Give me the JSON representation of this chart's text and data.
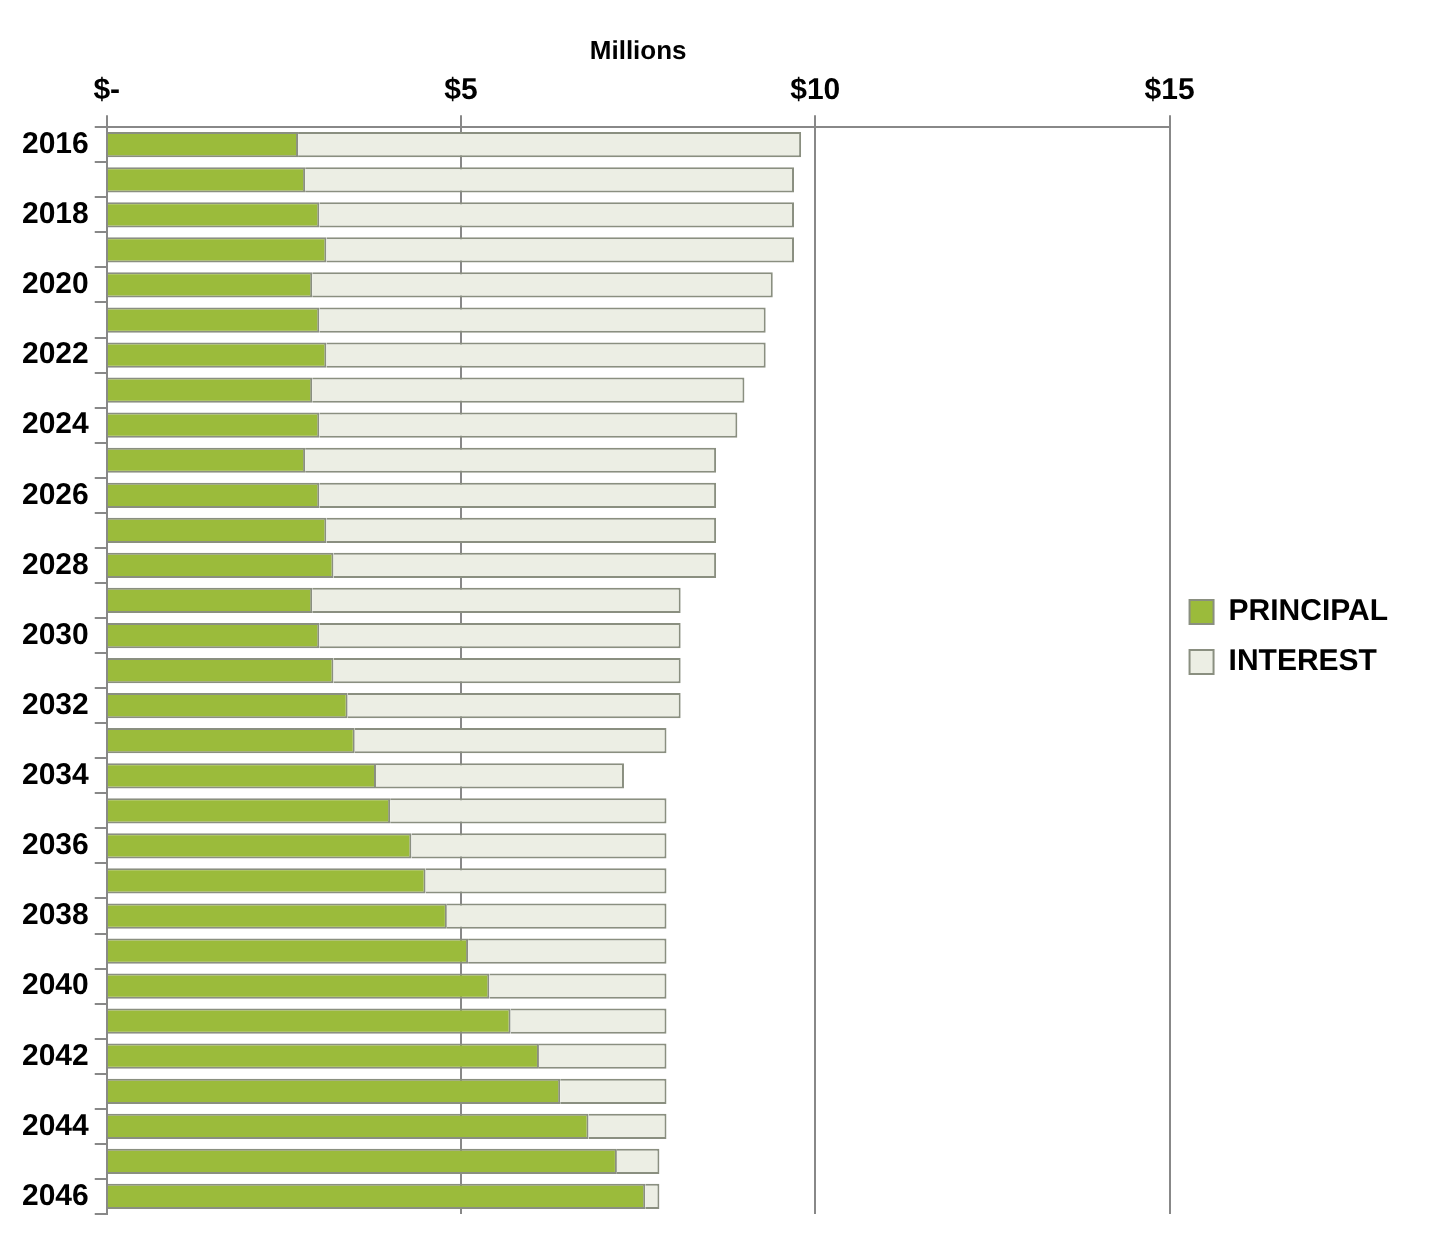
{
  "chart_data": {
    "type": "bar",
    "orientation": "horizontal",
    "stacked": true,
    "xlabel": "Millions",
    "categories": [
      "2016",
      null,
      "2018",
      null,
      "2020",
      null,
      "2022",
      null,
      "2024",
      null,
      "2026",
      null,
      "2028",
      null,
      "2030",
      null,
      "2032",
      null,
      "2034",
      null,
      "2036",
      null,
      "2038",
      null,
      "2040",
      null,
      "2042",
      null,
      "2044",
      null,
      "2046"
    ],
    "series": [
      {
        "name": "PRINCIPAL",
        "color": "#9bbb3b",
        "values": [
          2.7,
          2.8,
          3.0,
          3.1,
          2.9,
          3.0,
          3.1,
          2.9,
          3.0,
          2.8,
          3.0,
          3.1,
          3.2,
          2.9,
          3.0,
          3.2,
          3.4,
          3.5,
          3.8,
          4.0,
          4.3,
          4.5,
          4.8,
          5.1,
          5.4,
          5.7,
          6.1,
          6.4,
          6.8,
          7.2,
          7.6
        ]
      },
      {
        "name": "INTEREST",
        "color": "#eceee4",
        "values": [
          7.1,
          6.9,
          6.7,
          6.6,
          6.5,
          6.3,
          6.2,
          6.1,
          5.9,
          5.8,
          5.6,
          5.5,
          5.4,
          5.2,
          5.1,
          4.9,
          4.7,
          4.4,
          3.5,
          3.9,
          3.6,
          3.4,
          3.1,
          2.8,
          2.5,
          2.2,
          1.8,
          1.5,
          1.1,
          0.6,
          0.2
        ]
      }
    ],
    "xlim": [
      0,
      15
    ],
    "xticks": [
      {
        "value": 0,
        "label": "$-"
      },
      {
        "value": 5,
        "label": "$5"
      },
      {
        "value": 10,
        "label": "$10"
      },
      {
        "value": 15,
        "label": "$15"
      }
    ],
    "grid": "x",
    "legend": "right"
  }
}
